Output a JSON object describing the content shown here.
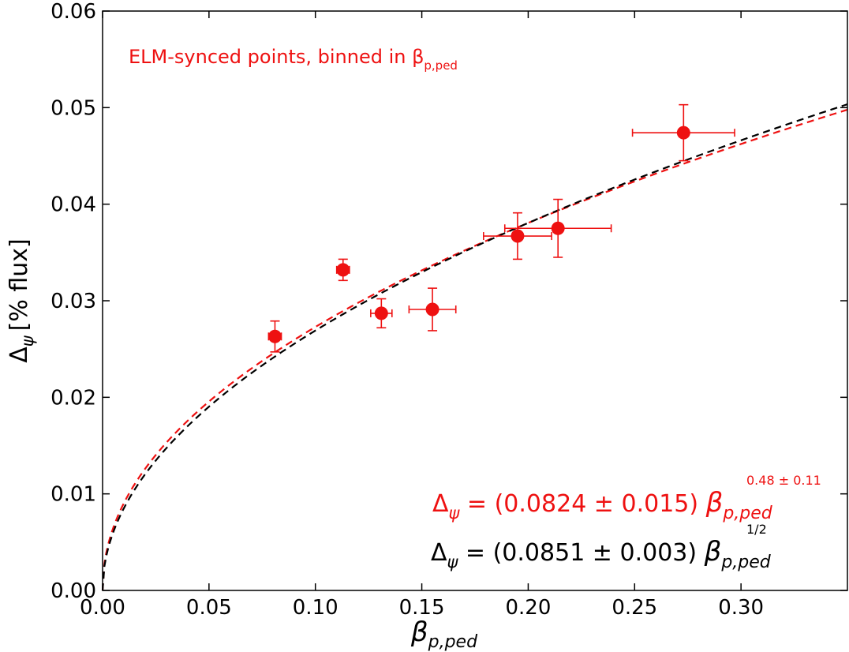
{
  "chart_data": {
    "type": "scatter",
    "xlabel": "β",
    "xlabel_sub": "p,ped",
    "ylabel": "Δ",
    "ylabel_sub": "ψ",
    "ylabel_units": "[% flux]",
    "xlim": [
      0.0,
      0.35
    ],
    "ylim": [
      0.0,
      0.06
    ],
    "x_ticks": [
      0.0,
      0.05,
      0.1,
      0.15,
      0.2,
      0.25,
      0.3
    ],
    "x_tick_labels": [
      "0.00",
      "0.05",
      "0.10",
      "0.15",
      "0.20",
      "0.25",
      "0.30"
    ],
    "y_ticks": [
      0.0,
      0.01,
      0.02,
      0.03,
      0.04,
      0.05,
      0.06
    ],
    "y_tick_labels": [
      "0.00",
      "0.01",
      "0.02",
      "0.03",
      "0.04",
      "0.05",
      "0.06"
    ],
    "grid": false,
    "annotation_top": {
      "text": "ELM-synced points, binned in β",
      "sub": "p,ped",
      "color": "#ee1111",
      "position": "top-left"
    },
    "points": {
      "color": "#ee1111",
      "data": [
        {
          "x": 0.081,
          "y": 0.0263,
          "xerr": 0.003,
          "yerr": 0.0016
        },
        {
          "x": 0.113,
          "y": 0.0332,
          "xerr": 0.003,
          "yerr": 0.0011
        },
        {
          "x": 0.131,
          "y": 0.0287,
          "xerr": 0.005,
          "yerr": 0.0015
        },
        {
          "x": 0.155,
          "y": 0.0291,
          "xerr": 0.011,
          "yerr": 0.0022
        },
        {
          "x": 0.195,
          "y": 0.0367,
          "xerr": 0.016,
          "yerr": 0.0024
        },
        {
          "x": 0.214,
          "y": 0.0375,
          "xerr": 0.025,
          "yerr": 0.003
        },
        {
          "x": 0.273,
          "y": 0.0474,
          "xerr": 0.024,
          "yerr": 0.0029
        }
      ]
    },
    "series": [
      {
        "coef": 0.0824,
        "exponent": 0.48,
        "color": "#ee1111",
        "style": "dashed"
      },
      {
        "coef": 0.0851,
        "exponent": 0.5,
        "color": "#000000",
        "style": "dashed"
      }
    ],
    "legend_position": "bottom-right",
    "fit_labels": [
      {
        "color": "#ee1111",
        "lhs": "Δ",
        "lhs_sub": "ψ",
        "eq": " = (0.0824 ± 0.015) ",
        "beta": "β",
        "beta_sub": "p,ped",
        "sup": "0.48 ± 0.11"
      },
      {
        "color": "#000000",
        "lhs": "Δ",
        "lhs_sub": "ψ",
        "eq": " = (0.0851 ± 0.003) ",
        "beta": "β",
        "beta_sub": "p,ped",
        "sup": "1/2"
      }
    ]
  }
}
